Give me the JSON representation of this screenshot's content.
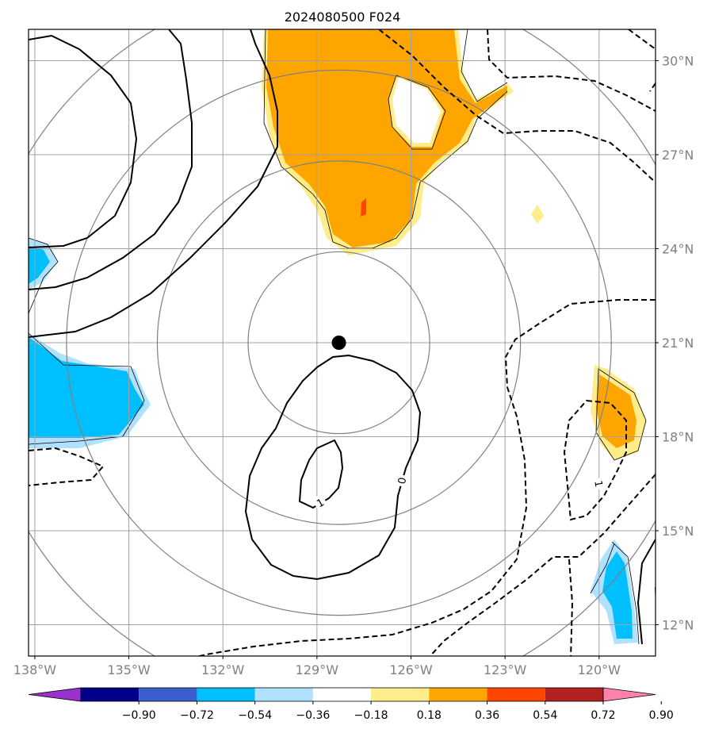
{
  "chart_data": {
    "type": "contour-map",
    "title": "2024080500 F024",
    "x_ticks": [
      "138°W",
      "135°W",
      "132°W",
      "129°W",
      "126°W",
      "123°W",
      "120°W"
    ],
    "x_values": [
      -138,
      -135,
      -132,
      -129,
      -126,
      -123,
      -120
    ],
    "y_ticks": [
      "12°N",
      "15°N",
      "18°N",
      "21°N",
      "24°N",
      "27°N",
      "30°N"
    ],
    "y_values": [
      12,
      15,
      18,
      21,
      24,
      27,
      30
    ],
    "xlim": [
      -138.2,
      -118.2
    ],
    "ylim": [
      11.0,
      31.0
    ],
    "grid": true,
    "center": {
      "lon": -128.3,
      "lat": 21.0
    },
    "range_rings_deg": [
      2.9,
      5.8,
      8.7,
      11.6
    ],
    "contour_labels": [
      {
        "text": "0",
        "lon": -126.3,
        "lat": 16.6,
        "rotate": -80
      },
      {
        "text": "1",
        "lon": -128.9,
        "lat": 15.9,
        "rotate": -30
      },
      {
        "text": "1",
        "lon": -120.0,
        "lat": 16.5,
        "rotate": 80
      }
    ],
    "colorbar": {
      "colors": [
        "#9932cc",
        "#00008b",
        "#3a5fcd",
        "#00bfff",
        "#b0e2ff",
        "#ffffff",
        "#ffec8b",
        "#ffa500",
        "#ff4500",
        "#b22222",
        "#ff82ab"
      ],
      "tick_labels": [
        "−0.90",
        "−0.72",
        "−0.54",
        "−0.36",
        "−0.18",
        "0.18",
        "0.36",
        "0.54",
        "0.72",
        "0.90"
      ]
    }
  }
}
